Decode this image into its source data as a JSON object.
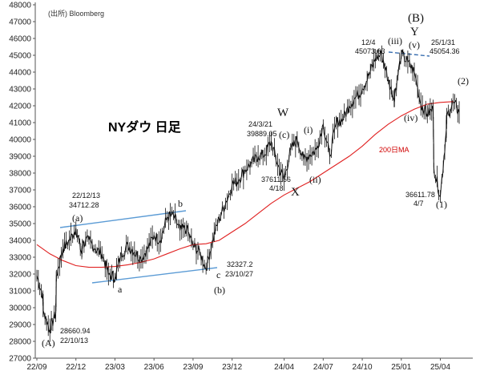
{
  "chart_data": {
    "type": "line",
    "title": "NYダウ 日足",
    "source": "(出所) Bloomberg",
    "xlabel": "",
    "ylabel": "",
    "ylim": [
      27000,
      48000
    ],
    "grid": false,
    "x_ticks": [
      "22/09",
      "22/12",
      "23/03",
      "23/06",
      "23/09",
      "23/12",
      "24/04",
      "24/07",
      "24/10",
      "25/01",
      "25/04"
    ],
    "y_ticks": [
      27000,
      28000,
      29000,
      30000,
      31000,
      32000,
      33000,
      34000,
      35000,
      36000,
      37000,
      38000,
      39000,
      40000,
      41000,
      42000,
      43000,
      44000,
      45000,
      46000,
      47000,
      48000
    ],
    "series": [
      {
        "name": "",
        "color": "#111111",
        "points": [
          [
            "22/09",
            31900
          ],
          [
            "22/09b",
            30700
          ],
          [
            "22/10a",
            29800
          ],
          [
            "22/10",
            28660.94
          ],
          [
            "22/10b",
            29700
          ],
          [
            "22/11a",
            31900
          ],
          [
            "22/11",
            33500
          ],
          [
            "22/12a",
            34000
          ],
          [
            "22/12",
            34712.28
          ],
          [
            "22/12b",
            33200
          ],
          [
            "23/01a",
            33800
          ],
          [
            "23/01",
            34000
          ],
          [
            "23/02a",
            33500
          ],
          [
            "23/02",
            33200
          ],
          [
            "23/03a",
            32000
          ],
          [
            "23/03",
            31800
          ],
          [
            "23/04a",
            33200
          ],
          [
            "23/04",
            33700
          ],
          [
            "23/05a",
            33300
          ],
          [
            "23/05",
            32900
          ],
          [
            "23/06a",
            33500
          ],
          [
            "23/06",
            34300
          ],
          [
            "23/07a",
            34000
          ],
          [
            "23/07",
            35400
          ],
          [
            "23/08a",
            35500
          ],
          [
            "23/08",
            34600
          ],
          [
            "23/09a",
            34700
          ],
          [
            "23/09",
            33700
          ],
          [
            "23/10a",
            33300
          ],
          [
            "23/10",
            32327.2
          ],
          [
            "23/11a",
            34000
          ],
          [
            "23/11",
            35300
          ],
          [
            "23/12a",
            36200
          ],
          [
            "23/12",
            37300
          ],
          [
            "24/01a",
            37600
          ],
          [
            "24/01",
            38200
          ],
          [
            "24/02a",
            38600
          ],
          [
            "24/02",
            39000
          ],
          [
            "24/03a",
            39100
          ],
          [
            "24/03",
            39889.05
          ],
          [
            "24/04a",
            38500
          ],
          [
            "24/04",
            37611.56
          ],
          [
            "24/05a",
            39400
          ],
          [
            "24/05",
            40000
          ],
          [
            "24/06a",
            38800
          ],
          [
            "24/06",
            39100
          ],
          [
            "24/07a",
            39400
          ],
          [
            "24/07",
            40900
          ],
          [
            "24/08a",
            39000
          ],
          [
            "24/08",
            41000
          ],
          [
            "24/09a",
            41200
          ],
          [
            "24/09",
            42000
          ],
          [
            "24/10a",
            42500
          ],
          [
            "24/10",
            43000
          ],
          [
            "24/11a",
            43800
          ],
          [
            "24/11",
            44800
          ],
          [
            "24/12a",
            45073.63
          ],
          [
            "24/12",
            43500
          ],
          [
            "24/12b",
            42400
          ],
          [
            "25/01a",
            42700
          ],
          [
            "25/01",
            45054.36
          ],
          [
            "25/02a",
            44600
          ],
          [
            "25/02",
            44000
          ],
          [
            "25/03a",
            42100
          ],
          [
            "25/03",
            41500
          ],
          [
            "25/03b",
            41800
          ],
          [
            "25/04a",
            38300
          ],
          [
            "25/04",
            36611.78
          ],
          [
            "25/04b",
            40500
          ],
          [
            "25/05a",
            41400
          ],
          [
            "25/05",
            42200
          ],
          [
            "25/05b",
            41600
          ]
        ]
      },
      {
        "name": "200日MA",
        "color": "#e02020",
        "points": [
          [
            "22/09",
            33750
          ],
          [
            "22/10",
            33200
          ],
          [
            "22/11",
            32800
          ],
          [
            "22/12",
            32500
          ],
          [
            "23/01",
            32400
          ],
          [
            "23/02",
            32400
          ],
          [
            "23/03",
            32450
          ],
          [
            "23/04",
            32550
          ],
          [
            "23/05",
            32700
          ],
          [
            "23/06",
            32900
          ],
          [
            "23/07",
            33200
          ],
          [
            "23/08",
            33500
          ],
          [
            "23/09",
            33750
          ],
          [
            "23/10",
            33800
          ],
          [
            "23/11",
            34000
          ],
          [
            "23/12",
            34500
          ],
          [
            "24/01",
            35000
          ],
          [
            "24/02",
            35600
          ],
          [
            "24/03",
            36200
          ],
          [
            "24/04",
            36700
          ],
          [
            "24/05",
            37100
          ],
          [
            "24/06",
            37500
          ],
          [
            "24/07",
            38000
          ],
          [
            "24/08",
            38500
          ],
          [
            "24/09",
            39000
          ],
          [
            "24/10",
            39600
          ],
          [
            "24/11",
            40300
          ],
          [
            "24/12",
            40900
          ],
          [
            "25/01",
            41400
          ],
          [
            "25/02",
            41800
          ],
          [
            "25/03",
            42100
          ],
          [
            "25/04",
            42200
          ],
          [
            "25/05",
            42250
          ]
        ]
      }
    ],
    "annotations": {
      "points": [
        {
          "date": "22/10/13",
          "value": "28660.94",
          "wave": "(A)"
        },
        {
          "date": "22/12/13",
          "value": "34712.28",
          "wave": "(a)"
        },
        {
          "date": "23/10/27",
          "value": "32327.2",
          "wave": "(b)"
        },
        {
          "date": "24/3/21",
          "value": "39889.05",
          "wave": "(c)"
        },
        {
          "date": "4/18",
          "value": "37611.56",
          "wave": "X"
        },
        {
          "date": "12/4",
          "value": "45073.63",
          "wave": "(iii)"
        },
        {
          "date": "25/1/31",
          "value": "45054.36",
          "wave": "(v)"
        },
        {
          "date": "4/7",
          "value": "36611.78",
          "wave": "(1)"
        }
      ],
      "wave_labels": [
        "(A)",
        "(a)",
        "a",
        "b",
        "c",
        "(b)",
        "W",
        "(c)",
        "X",
        "(i)",
        "(ii)",
        "(iii)",
        "(iv)",
        "(v)",
        "(B)",
        "Y",
        "(1)",
        "(2)"
      ],
      "ma_label": "200日MA"
    }
  }
}
